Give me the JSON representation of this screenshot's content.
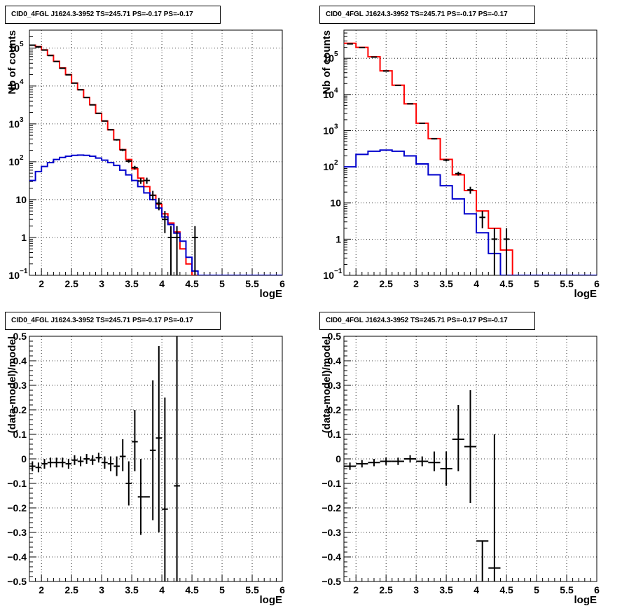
{
  "pads": [
    {
      "title": "CID0_4FGL J1624.3-3952 TS=245.71 PS=-0.17 PS=-0.17",
      "chart_data": {
        "type": "line",
        "xlabel": "logE",
        "ylabel": "Nb of counts",
        "xlim": [
          1.8,
          6.0
        ],
        "ylim": [
          0.1,
          300000
        ],
        "yscale": "log",
        "grid": true,
        "xticks": [
          "2",
          "2.5",
          "3",
          "3.5",
          "4",
          "4.5",
          "5",
          "5.5",
          "6"
        ],
        "yticks": [
          {
            "base": "10",
            "exp": "−1",
            "value": 0.1
          },
          {
            "base": "1",
            "exp": "",
            "value": 1
          },
          {
            "base": "10",
            "exp": "",
            "value": 10
          },
          {
            "base": "10",
            "exp": "2",
            "value": 100
          },
          {
            "base": "10",
            "exp": "3",
            "value": 1000
          },
          {
            "base": "10",
            "exp": "4",
            "value": 10000
          },
          {
            "base": "10",
            "exp": "5",
            "value": 100000
          }
        ],
        "bin_edges": [
          1.8,
          1.9,
          2.0,
          2.1,
          2.2,
          2.3,
          2.4,
          2.5,
          2.6,
          2.7,
          2.8,
          2.9,
          3.0,
          3.1,
          3.2,
          3.3,
          3.4,
          3.5,
          3.6,
          3.7,
          3.8,
          3.9,
          4.0,
          4.1,
          4.2,
          4.3,
          4.4,
          4.5,
          4.6,
          4.7,
          4.8,
          4.9,
          5.0,
          5.1,
          5.2,
          5.3,
          5.4,
          5.5,
          5.6,
          5.7,
          5.8,
          5.9,
          6.0
        ],
        "series": [
          {
            "color": "#ff0000",
            "kind": "model-total",
            "values": [
              120000,
              110000,
              90000,
              65000,
              45000,
              30000,
              20000,
              12000,
              8000,
              5000,
              3200,
              1900,
              1200,
              700,
              380,
              210,
              115,
              65,
              37,
              22,
              13,
              7.5,
              4.2,
              2.4,
              1.4,
              0.5,
              0.2,
              0.1,
              0.1,
              0.1,
              0.1,
              0.1,
              0.1,
              0.1,
              0.1,
              0.1,
              0.1,
              0.1,
              0.1,
              0.1,
              0.1,
              0.1
            ]
          },
          {
            "color": "#0000cc",
            "kind": "model-source",
            "values": [
              32,
              55,
              75,
              95,
              115,
              130,
              140,
              148,
              150,
              148,
              140,
              125,
              110,
              95,
              80,
              60,
              45,
              32,
              22,
              15,
              10,
              6,
              3.5,
              2.2,
              1.3,
              0.8,
              0.3,
              0.13,
              0.1,
              0.1,
              0.1,
              0.1,
              0.1,
              0.1,
              0.1,
              0.1,
              0.1,
              0.1,
              0.1,
              0.1,
              0.1,
              0.1
            ]
          }
        ],
        "data_points": [
          {
            "x": 1.85,
            "y": 120000,
            "lo": 119000,
            "hi": 121000
          },
          {
            "x": 1.95,
            "y": 108000,
            "lo": 107000,
            "hi": 109000
          },
          {
            "x": 2.05,
            "y": 89000,
            "lo": 88000,
            "hi": 90000
          },
          {
            "x": 2.15,
            "y": 64000,
            "lo": 63500,
            "hi": 64500
          },
          {
            "x": 2.25,
            "y": 44500,
            "lo": 44000,
            "hi": 45000
          },
          {
            "x": 2.35,
            "y": 29500,
            "lo": 29000,
            "hi": 30000
          },
          {
            "x": 2.45,
            "y": 19800,
            "lo": 19500,
            "hi": 20100
          },
          {
            "x": 2.55,
            "y": 11900,
            "lo": 11700,
            "hi": 12100
          },
          {
            "x": 2.65,
            "y": 7950,
            "lo": 7800,
            "hi": 8100
          },
          {
            "x": 2.75,
            "y": 4980,
            "lo": 4900,
            "hi": 5060
          },
          {
            "x": 2.85,
            "y": 3180,
            "lo": 3120,
            "hi": 3240
          },
          {
            "x": 2.95,
            "y": 1900,
            "lo": 1860,
            "hi": 1940
          },
          {
            "x": 3.05,
            "y": 1190,
            "lo": 1160,
            "hi": 1220
          },
          {
            "x": 3.15,
            "y": 700,
            "lo": 675,
            "hi": 725
          },
          {
            "x": 3.25,
            "y": 380,
            "lo": 362,
            "hi": 398
          },
          {
            "x": 3.35,
            "y": 205,
            "lo": 191,
            "hi": 219
          },
          {
            "x": 3.45,
            "y": 104,
            "lo": 94,
            "hi": 114
          },
          {
            "x": 3.55,
            "y": 70,
            "lo": 62,
            "hi": 78
          },
          {
            "x": 3.65,
            "y": 31,
            "lo": 26,
            "hi": 37
          },
          {
            "x": 3.75,
            "y": 32,
            "lo": 26,
            "hi": 38
          },
          {
            "x": 3.85,
            "y": 13,
            "lo": 9.5,
            "hi": 17
          },
          {
            "x": 3.95,
            "y": 8,
            "lo": 5.2,
            "hi": 11
          },
          {
            "x": 4.05,
            "y": 3,
            "lo": 1.3,
            "hi": 5
          },
          {
            "x": 4.15,
            "y": 1,
            "lo": 0.1,
            "hi": 2
          },
          {
            "x": 4.25,
            "y": 1,
            "lo": 0.1,
            "hi": 2
          },
          {
            "x": 4.55,
            "y": 1,
            "lo": 0.1,
            "hi": 2
          }
        ]
      }
    },
    {
      "title": "CID0_4FGL J1624.3-3952 TS=245.71 PS=-0.17 PS=-0.17",
      "chart_data": {
        "type": "line",
        "xlabel": "logE",
        "ylabel": "Nb of counts",
        "xlim": [
          1.8,
          6.0
        ],
        "ylim": [
          0.1,
          600000
        ],
        "yscale": "log",
        "grid": true,
        "xticks": [
          "2",
          "2.5",
          "3",
          "3.5",
          "4",
          "4.5",
          "5",
          "5.5",
          "6"
        ],
        "yticks": [
          {
            "base": "10",
            "exp": "−1",
            "value": 0.1
          },
          {
            "base": "1",
            "exp": "",
            "value": 1
          },
          {
            "base": "10",
            "exp": "",
            "value": 10
          },
          {
            "base": "10",
            "exp": "2",
            "value": 100
          },
          {
            "base": "10",
            "exp": "3",
            "value": 1000
          },
          {
            "base": "10",
            "exp": "4",
            "value": 10000
          },
          {
            "base": "10",
            "exp": "5",
            "value": 100000
          }
        ],
        "bin_edges": [
          1.8,
          2.0,
          2.2,
          2.4,
          2.6,
          2.8,
          3.0,
          3.2,
          3.4,
          3.6,
          3.8,
          4.0,
          4.2,
          4.4,
          4.6,
          4.8,
          5.0,
          5.2,
          5.4,
          5.6,
          5.8,
          6.0
        ],
        "series": [
          {
            "color": "#ff0000",
            "kind": "model-total",
            "values": [
              260000,
              200000,
              110000,
              45000,
              18000,
              5500,
              1600,
              600,
              160,
              60,
              22,
              6,
              2,
              0.5,
              0.1,
              0.1,
              0.1,
              0.1,
              0.1,
              0.1,
              0.1
            ]
          },
          {
            "color": "#0000cc",
            "kind": "model-source",
            "values": [
              100,
              220,
              270,
              290,
              270,
              200,
              120,
              60,
              30,
              13,
              5,
              1.5,
              0.4,
              0.1,
              0.1,
              0.1,
              0.1,
              0.1,
              0.1,
              0.1,
              0.1
            ]
          }
        ],
        "data_points": [
          {
            "x": 1.9,
            "y": 250000,
            "lo": 248000,
            "hi": 252000
          },
          {
            "x": 2.1,
            "y": 198000,
            "lo": 197000,
            "hi": 199000
          },
          {
            "x": 2.3,
            "y": 108000,
            "lo": 107000,
            "hi": 109000
          },
          {
            "x": 2.5,
            "y": 44500,
            "lo": 44000,
            "hi": 45000
          },
          {
            "x": 2.7,
            "y": 17800,
            "lo": 17600,
            "hi": 18000
          },
          {
            "x": 2.9,
            "y": 5500,
            "lo": 5420,
            "hi": 5580
          },
          {
            "x": 3.1,
            "y": 1590,
            "lo": 1550,
            "hi": 1630
          },
          {
            "x": 3.3,
            "y": 595,
            "lo": 570,
            "hi": 620
          },
          {
            "x": 3.5,
            "y": 153,
            "lo": 141,
            "hi": 165
          },
          {
            "x": 3.7,
            "y": 65,
            "lo": 57,
            "hi": 73
          },
          {
            "x": 3.9,
            "y": 23,
            "lo": 18,
            "hi": 28
          },
          {
            "x": 4.1,
            "y": 4,
            "lo": 2,
            "hi": 6
          },
          {
            "x": 4.3,
            "y": 1,
            "lo": 0.1,
            "hi": 2
          },
          {
            "x": 4.5,
            "y": 1,
            "lo": 0.1,
            "hi": 2
          }
        ]
      }
    },
    {
      "title": "CID0_4FGL J1624.3-3952 TS=245.71 PS=-0.17 PS=-0.17",
      "chart_data": {
        "type": "scatter",
        "xlabel": "logE",
        "ylabel": "(data-model)/model",
        "xlim": [
          1.8,
          6.0
        ],
        "ylim": [
          -0.5,
          0.5
        ],
        "grid": true,
        "xticks": [
          "2",
          "2.5",
          "3",
          "3.5",
          "4",
          "4.5",
          "5",
          "5.5",
          "6"
        ],
        "yticks": [
          "−0.5",
          "−0.4",
          "−0.3",
          "−0.2",
          "−0.1",
          "0",
          "0.1",
          "0.2",
          "0.3",
          "0.4",
          "0.5"
        ],
        "bin_width": 0.1,
        "points": [
          {
            "x": 1.85,
            "y": -0.03,
            "lo": -0.05,
            "hi": -0.01
          },
          {
            "x": 1.95,
            "y": -0.035,
            "lo": -0.055,
            "hi": -0.015
          },
          {
            "x": 2.05,
            "y": -0.02,
            "lo": -0.04,
            "hi": 0.0
          },
          {
            "x": 2.15,
            "y": -0.015,
            "lo": -0.035,
            "hi": 0.005
          },
          {
            "x": 2.25,
            "y": -0.015,
            "lo": -0.035,
            "hi": 0.005
          },
          {
            "x": 2.35,
            "y": -0.015,
            "lo": -0.035,
            "hi": 0.005
          },
          {
            "x": 2.45,
            "y": -0.02,
            "lo": -0.04,
            "hi": 0.0
          },
          {
            "x": 2.55,
            "y": -0.005,
            "lo": -0.025,
            "hi": 0.015
          },
          {
            "x": 2.65,
            "y": -0.01,
            "lo": -0.03,
            "hi": 0.01
          },
          {
            "x": 2.75,
            "y": 0.0,
            "lo": -0.02,
            "hi": 0.02
          },
          {
            "x": 2.85,
            "y": -0.005,
            "lo": -0.025,
            "hi": 0.015
          },
          {
            "x": 2.95,
            "y": 0.005,
            "lo": -0.015,
            "hi": 0.025
          },
          {
            "x": 3.05,
            "y": -0.015,
            "lo": -0.04,
            "hi": 0.01
          },
          {
            "x": 3.15,
            "y": -0.02,
            "lo": -0.05,
            "hi": 0.01
          },
          {
            "x": 3.25,
            "y": -0.03,
            "lo": -0.07,
            "hi": 0.01
          },
          {
            "x": 3.35,
            "y": 0.01,
            "lo": -0.05,
            "hi": 0.08
          },
          {
            "x": 3.45,
            "y": -0.1,
            "lo": -0.19,
            "hi": -0.01
          },
          {
            "x": 3.55,
            "y": 0.07,
            "lo": -0.05,
            "hi": 0.2
          },
          {
            "x": 3.65,
            "y": -0.155,
            "lo": -0.31,
            "hi": 0.0
          },
          {
            "x": 3.75,
            "y": -0.155,
            "lo": -0.155,
            "hi": -0.155
          },
          {
            "x": 3.85,
            "y": 0.035,
            "lo": -0.25,
            "hi": 0.32
          },
          {
            "x": 3.95,
            "y": 0.085,
            "lo": -0.3,
            "hi": 0.46
          },
          {
            "x": 4.05,
            "y": -0.205,
            "lo": -0.5,
            "hi": 0.25
          },
          {
            "x": 4.25,
            "y": -0.11,
            "lo": -0.5,
            "hi": 0.5
          }
        ]
      }
    },
    {
      "title": "CID0_4FGL J1624.3-3952 TS=245.71 PS=-0.17 PS=-0.17",
      "chart_data": {
        "type": "scatter",
        "xlabel": "logE",
        "ylabel": "(data-model)/model",
        "xlim": [
          1.8,
          6.0
        ],
        "ylim": [
          -0.5,
          0.5
        ],
        "grid": true,
        "xticks": [
          "2",
          "2.5",
          "3",
          "3.5",
          "4",
          "4.5",
          "5",
          "5.5",
          "6"
        ],
        "yticks": [
          "−0.5",
          "−0.4",
          "−0.3",
          "−0.2",
          "−0.1",
          "0",
          "0.1",
          "0.2",
          "0.3",
          "0.4",
          "0.5"
        ],
        "bin_width": 0.2,
        "points": [
          {
            "x": 1.9,
            "y": -0.03,
            "lo": -0.045,
            "hi": -0.015
          },
          {
            "x": 2.1,
            "y": -0.02,
            "lo": -0.035,
            "hi": -0.005
          },
          {
            "x": 2.3,
            "y": -0.015,
            "lo": -0.03,
            "hi": 0.0
          },
          {
            "x": 2.5,
            "y": -0.01,
            "lo": -0.025,
            "hi": 0.005
          },
          {
            "x": 2.7,
            "y": -0.01,
            "lo": -0.025,
            "hi": 0.005
          },
          {
            "x": 2.9,
            "y": 0.0,
            "lo": -0.015,
            "hi": 0.015
          },
          {
            "x": 3.1,
            "y": -0.01,
            "lo": -0.03,
            "hi": 0.01
          },
          {
            "x": 3.3,
            "y": -0.015,
            "lo": -0.05,
            "hi": 0.03
          },
          {
            "x": 3.5,
            "y": -0.04,
            "lo": -0.11,
            "hi": 0.03
          },
          {
            "x": 3.7,
            "y": 0.08,
            "lo": -0.05,
            "hi": 0.22
          },
          {
            "x": 3.9,
            "y": 0.05,
            "lo": -0.18,
            "hi": 0.28
          },
          {
            "x": 4.1,
            "y": -0.335,
            "lo": -0.5,
            "hi": -0.335
          },
          {
            "x": 4.3,
            "y": -0.445,
            "lo": -0.5,
            "hi": 0.1
          }
        ]
      }
    }
  ]
}
